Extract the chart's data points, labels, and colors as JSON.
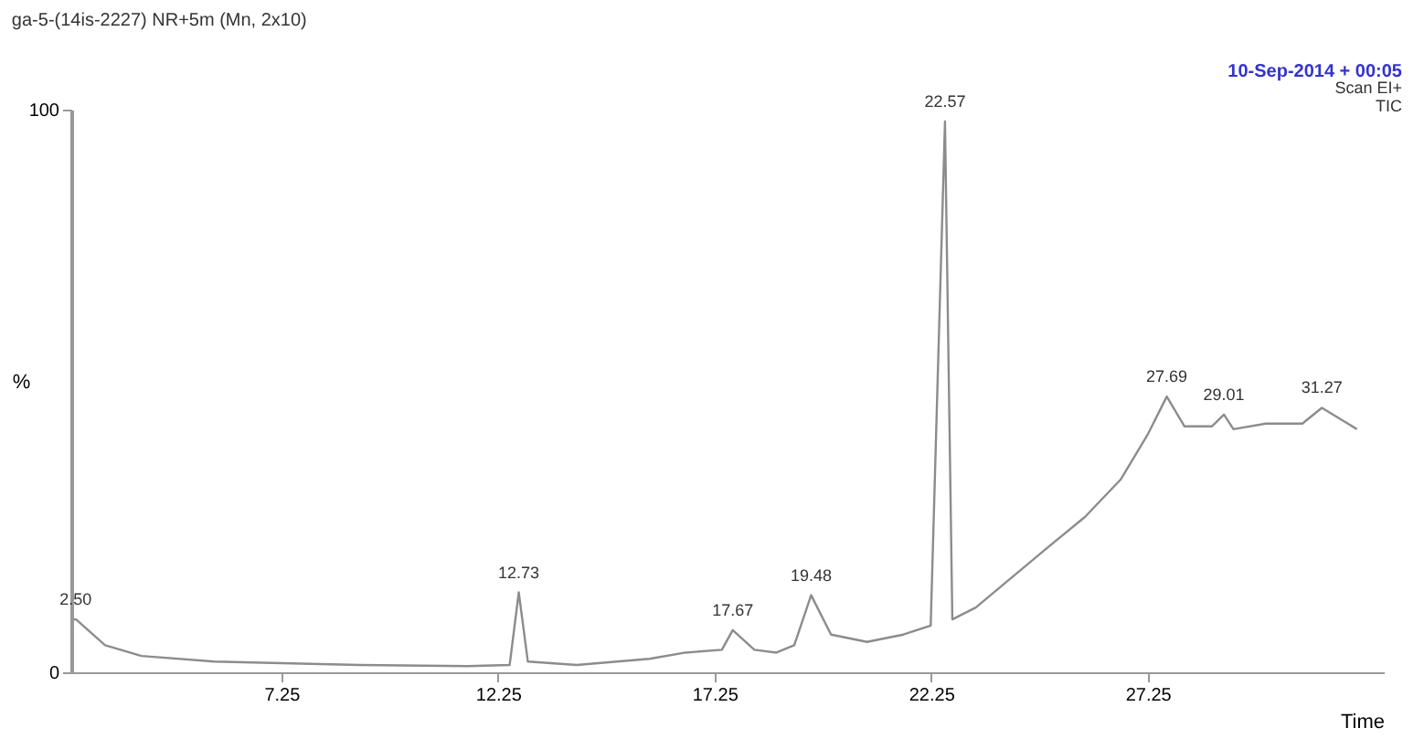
{
  "chart_data": {
    "type": "line",
    "title": "ga-5-(14is-2227) NR+5m (Mn, 2x10)",
    "xlabel": "Time",
    "ylabel": "%",
    "x": [
      2.45,
      2.51,
      3.18,
      4.02,
      5.7,
      9.05,
      11.56,
      12.52,
      12.73,
      12.94,
      14.07,
      15.75,
      16.58,
      17.42,
      17.67,
      18.17,
      18.68,
      19.09,
      19.48,
      19.94,
      20.77,
      21.61,
      22.24,
      22.57,
      22.74,
      23.28,
      24.12,
      24.96,
      25.8,
      26.63,
      27.26,
      27.69,
      28.1,
      28.73,
      29.01,
      29.23,
      29.98,
      30.82,
      31.27,
      31.87,
      32.08
    ],
    "series": [
      {
        "color": "#8c8c8c",
        "values": [
          9.4,
          9.4,
          4.8,
          2.9,
          1.9,
          1.3,
          1.1,
          1.3,
          14.2,
          1.9,
          1.3,
          2.4,
          3.5,
          4.0,
          7.5,
          4.0,
          3.5,
          4.8,
          13.7,
          6.7,
          5.4,
          6.7,
          8.3,
          97.9,
          9.4,
          11.5,
          16.9,
          22.3,
          27.6,
          34.3,
          42.4,
          49,
          43.7,
          43.7,
          45.8,
          43.2,
          44.2,
          44.2,
          47,
          44.2,
          43.2
        ]
      }
    ],
    "xlim": [
      2.4,
      32.7
    ],
    "xticks": [
      7.25,
      12.25,
      17.25,
      22.25,
      27.25
    ],
    "ylim": [
      0,
      100
    ],
    "yticks": [
      0,
      100
    ],
    "grid": false,
    "legend": false,
    "marker": "none",
    "line_style": "solid",
    "annotations": [
      "10-Sep-2014 + 00:05",
      "Scan EI+",
      "TIC",
      {
        "text": "2.50",
        "x": 2.5,
        "y": 9.4
      },
      {
        "text": "12.73",
        "x": 12.73,
        "y": 14.2
      },
      {
        "text": "17.67",
        "x": 17.67,
        "y": 7.5
      },
      {
        "text": "19.48",
        "x": 19.48,
        "y": 13.7
      },
      {
        "text": "22.57",
        "x": 22.57,
        "y": 97.9
      },
      {
        "text": "27.69",
        "x": 27.69,
        "y": 49
      },
      {
        "text": "29.01",
        "x": 29.01,
        "y": 45.8
      },
      {
        "text": "31.27",
        "x": 31.27,
        "y": 47
      }
    ]
  }
}
